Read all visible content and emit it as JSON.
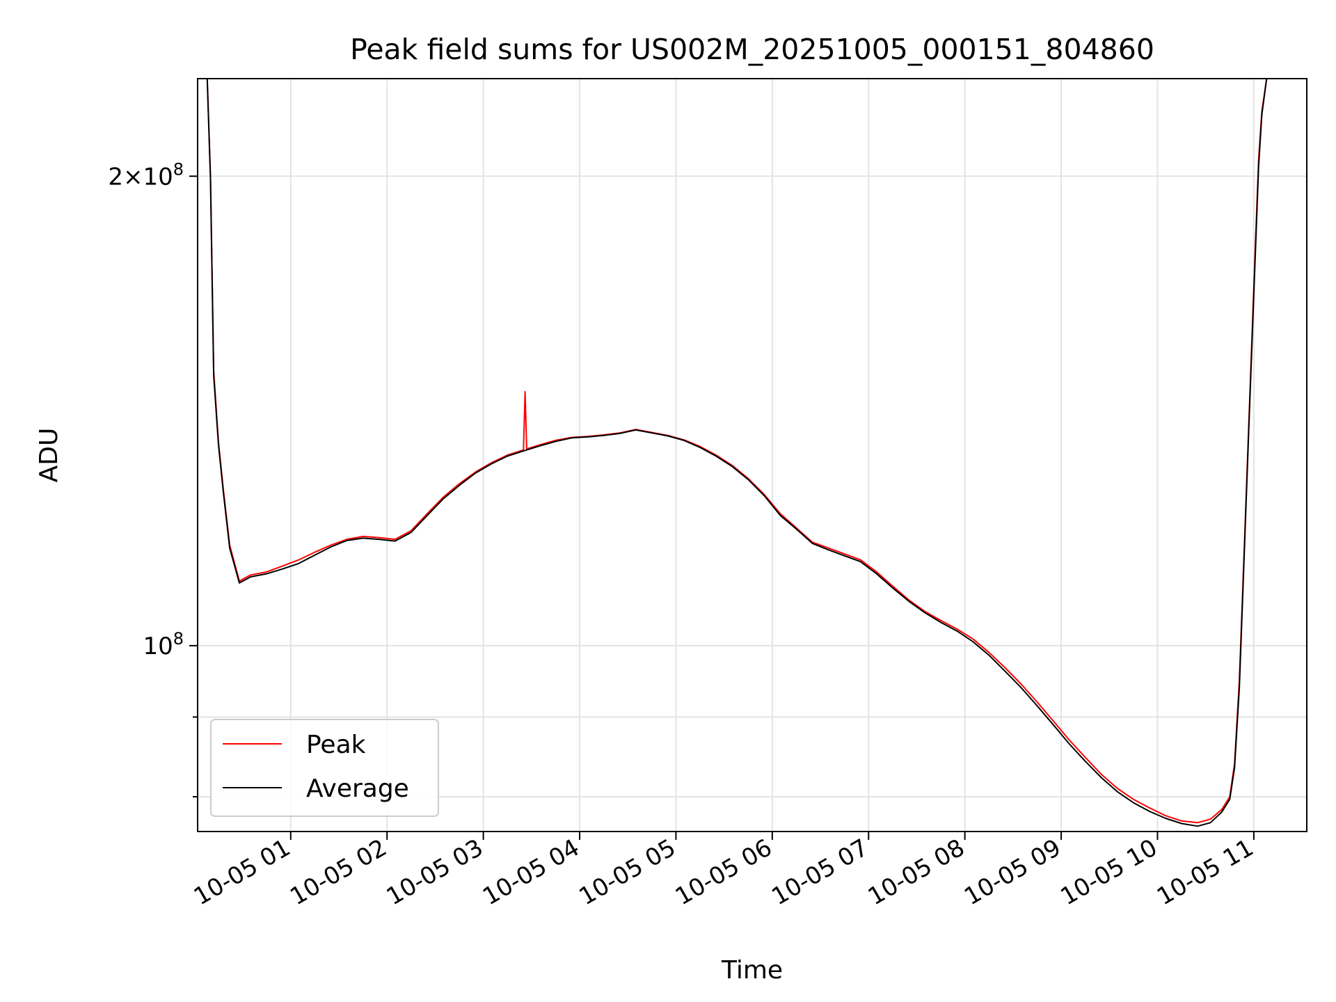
{
  "chart_data": {
    "type": "line",
    "title": "Peak field sums for US002M_20251005_000151_804860",
    "xlabel": "Time",
    "ylabel": "ADU",
    "yscale": "log",
    "grid": true,
    "legend_position": "bottom-left",
    "x_tick_labels": [
      "10-05 01",
      "10-05 02",
      "10-05 03",
      "10-05 04",
      "10-05 05",
      "10-05 06",
      "10-05 07",
      "10-05 08",
      "10-05 09",
      "10-05 10",
      "10-05 11"
    ],
    "y_tick_labels": [
      {
        "value": 200000000,
        "base": "2×10",
        "exp": "8"
      },
      {
        "value": 100000000,
        "base": "10",
        "exp": "8"
      }
    ],
    "y_minor_ticks": [
      80000000,
      90000000
    ],
    "xlim": [
      "2025-10-05 00:02",
      "2025-10-05 11:33"
    ],
    "ylim": [
      76000000,
      231000000
    ],
    "series": [
      {
        "name": "Peak",
        "color": "#ff0000",
        "points": [
          [
            "2025-10-05 00:08",
            231000000
          ],
          [
            "2025-10-05 00:10",
            200000000
          ],
          [
            "2025-10-05 00:12",
            150000000
          ],
          [
            "2025-10-05 00:15",
            135000000
          ],
          [
            "2025-10-05 00:18",
            126000000
          ],
          [
            "2025-10-05 00:22",
            116000000
          ],
          [
            "2025-10-05 00:28",
            110000000
          ],
          [
            "2025-10-05 00:35",
            111000000
          ],
          [
            "2025-10-05 00:45",
            111500000
          ],
          [
            "2025-10-05 00:55",
            112500000
          ],
          [
            "2025-10-05 01:05",
            113500000
          ],
          [
            "2025-10-05 01:15",
            114800000
          ],
          [
            "2025-10-05 01:25",
            116000000
          ],
          [
            "2025-10-05 01:35",
            117000000
          ],
          [
            "2025-10-05 01:45",
            117500000
          ],
          [
            "2025-10-05 01:55",
            117300000
          ],
          [
            "2025-10-05 02:05",
            117000000
          ],
          [
            "2025-10-05 02:15",
            118500000
          ],
          [
            "2025-10-05 02:25",
            121500000
          ],
          [
            "2025-10-05 02:35",
            124500000
          ],
          [
            "2025-10-05 02:45",
            127000000
          ],
          [
            "2025-10-05 02:55",
            129200000
          ],
          [
            "2025-10-05 03:05",
            131000000
          ],
          [
            "2025-10-05 03:15",
            132500000
          ],
          [
            "2025-10-05 03:25",
            133500000
          ],
          [
            "2025-10-05 03:26",
            145500000
          ],
          [
            "2025-10-05 03:27",
            133700000
          ],
          [
            "2025-10-05 03:35",
            134500000
          ],
          [
            "2025-10-05 03:45",
            135400000
          ],
          [
            "2025-10-05 03:55",
            136000000
          ],
          [
            "2025-10-05 04:05",
            136200000
          ],
          [
            "2025-10-05 04:15",
            136500000
          ],
          [
            "2025-10-05 04:25",
            136900000
          ],
          [
            "2025-10-05 04:35",
            137600000
          ],
          [
            "2025-10-05 04:45",
            137000000
          ],
          [
            "2025-10-05 04:55",
            136400000
          ],
          [
            "2025-10-05 05:05",
            135500000
          ],
          [
            "2025-10-05 05:15",
            134200000
          ],
          [
            "2025-10-05 05:25",
            132500000
          ],
          [
            "2025-10-05 05:35",
            130500000
          ],
          [
            "2025-10-05 05:45",
            128000000
          ],
          [
            "2025-10-05 05:55",
            125000000
          ],
          [
            "2025-10-05 06:05",
            121500000
          ],
          [
            "2025-10-05 06:15",
            119000000
          ],
          [
            "2025-10-05 06:25",
            116500000
          ],
          [
            "2025-10-05 06:35",
            115500000
          ],
          [
            "2025-10-05 06:45",
            114500000
          ],
          [
            "2025-10-05 06:55",
            113500000
          ],
          [
            "2025-10-05 07:05",
            111500000
          ],
          [
            "2025-10-05 07:15",
            109200000
          ],
          [
            "2025-10-05 07:25",
            107000000
          ],
          [
            "2025-10-05 07:35",
            105200000
          ],
          [
            "2025-10-05 07:45",
            103800000
          ],
          [
            "2025-10-05 07:55",
            102500000
          ],
          [
            "2025-10-05 08:05",
            101000000
          ],
          [
            "2025-10-05 08:15",
            99000000
          ],
          [
            "2025-10-05 08:25",
            96800000
          ],
          [
            "2025-10-05 08:35",
            94500000
          ],
          [
            "2025-10-05 08:45",
            92000000
          ],
          [
            "2025-10-05 08:55",
            89500000
          ],
          [
            "2025-10-05 09:05",
            87000000
          ],
          [
            "2025-10-05 09:15",
            84800000
          ],
          [
            "2025-10-05 09:25",
            82700000
          ],
          [
            "2025-10-05 09:35",
            81000000
          ],
          [
            "2025-10-05 09:45",
            79700000
          ],
          [
            "2025-10-05 09:55",
            78700000
          ],
          [
            "2025-10-05 10:05",
            77800000
          ],
          [
            "2025-10-05 10:15",
            77200000
          ],
          [
            "2025-10-05 10:25",
            77000000
          ],
          [
            "2025-10-05 10:33",
            77400000
          ],
          [
            "2025-10-05 10:40",
            78500000
          ],
          [
            "2025-10-05 10:45",
            80000000
          ],
          [
            "2025-10-05 10:48",
            84000000
          ],
          [
            "2025-10-05 10:51",
            95000000
          ],
          [
            "2025-10-05 10:54",
            115000000
          ],
          [
            "2025-10-05 10:57",
            140000000
          ],
          [
            "2025-10-05 11:00",
            170000000
          ],
          [
            "2025-10-05 11:03",
            205000000
          ],
          [
            "2025-10-05 11:05",
            220000000
          ],
          [
            "2025-10-05 11:08",
            231000000
          ]
        ]
      },
      {
        "name": "Average",
        "color": "#000000",
        "points": [
          [
            "2025-10-05 00:08",
            231000000
          ],
          [
            "2025-10-05 00:10",
            199000000
          ],
          [
            "2025-10-05 00:12",
            149000000
          ],
          [
            "2025-10-05 00:15",
            134500000
          ],
          [
            "2025-10-05 00:18",
            125500000
          ],
          [
            "2025-10-05 00:22",
            115500000
          ],
          [
            "2025-10-05 00:28",
            109700000
          ],
          [
            "2025-10-05 00:35",
            110700000
          ],
          [
            "2025-10-05 00:45",
            111200000
          ],
          [
            "2025-10-05 00:55",
            112000000
          ],
          [
            "2025-10-05 01:05",
            112900000
          ],
          [
            "2025-10-05 01:15",
            114300000
          ],
          [
            "2025-10-05 01:25",
            115700000
          ],
          [
            "2025-10-05 01:35",
            116800000
          ],
          [
            "2025-10-05 01:45",
            117200000
          ],
          [
            "2025-10-05 01:55",
            117000000
          ],
          [
            "2025-10-05 02:05",
            116700000
          ],
          [
            "2025-10-05 02:15",
            118200000
          ],
          [
            "2025-10-05 02:25",
            121200000
          ],
          [
            "2025-10-05 02:35",
            124200000
          ],
          [
            "2025-10-05 02:45",
            126700000
          ],
          [
            "2025-10-05 02:55",
            129000000
          ],
          [
            "2025-10-05 03:05",
            130800000
          ],
          [
            "2025-10-05 03:15",
            132300000
          ],
          [
            "2025-10-05 03:25",
            133300000
          ],
          [
            "2025-10-05 03:35",
            134300000
          ],
          [
            "2025-10-05 03:45",
            135200000
          ],
          [
            "2025-10-05 03:55",
            135900000
          ],
          [
            "2025-10-05 04:05",
            136100000
          ],
          [
            "2025-10-05 04:15",
            136400000
          ],
          [
            "2025-10-05 04:25",
            136800000
          ],
          [
            "2025-10-05 04:35",
            137500000
          ],
          [
            "2025-10-05 04:45",
            136900000
          ],
          [
            "2025-10-05 04:55",
            136300000
          ],
          [
            "2025-10-05 05:05",
            135400000
          ],
          [
            "2025-10-05 05:15",
            134000000
          ],
          [
            "2025-10-05 05:25",
            132300000
          ],
          [
            "2025-10-05 05:35",
            130300000
          ],
          [
            "2025-10-05 05:45",
            127800000
          ],
          [
            "2025-10-05 05:55",
            124800000
          ],
          [
            "2025-10-05 06:05",
            121200000
          ],
          [
            "2025-10-05 06:15",
            118800000
          ],
          [
            "2025-10-05 06:25",
            116300000
          ],
          [
            "2025-10-05 06:35",
            115200000
          ],
          [
            "2025-10-05 06:45",
            114200000
          ],
          [
            "2025-10-05 06:55",
            113200000
          ],
          [
            "2025-10-05 07:05",
            111200000
          ],
          [
            "2025-10-05 07:15",
            108900000
          ],
          [
            "2025-10-05 07:25",
            106800000
          ],
          [
            "2025-10-05 07:35",
            105000000
          ],
          [
            "2025-10-05 07:45",
            103500000
          ],
          [
            "2025-10-05 07:55",
            102200000
          ],
          [
            "2025-10-05 08:05",
            100600000
          ],
          [
            "2025-10-05 08:15",
            98600000
          ],
          [
            "2025-10-05 08:25",
            96300000
          ],
          [
            "2025-10-05 08:35",
            94000000
          ],
          [
            "2025-10-05 08:45",
            91500000
          ],
          [
            "2025-10-05 08:55",
            89000000
          ],
          [
            "2025-10-05 09:05",
            86500000
          ],
          [
            "2025-10-05 09:15",
            84300000
          ],
          [
            "2025-10-05 09:25",
            82300000
          ],
          [
            "2025-10-05 09:35",
            80600000
          ],
          [
            "2025-10-05 09:45",
            79300000
          ],
          [
            "2025-10-05 09:55",
            78300000
          ],
          [
            "2025-10-05 10:05",
            77500000
          ],
          [
            "2025-10-05 10:15",
            76900000
          ],
          [
            "2025-10-05 10:25",
            76600000
          ],
          [
            "2025-10-05 10:33",
            77000000
          ],
          [
            "2025-10-05 10:40",
            78200000
          ],
          [
            "2025-10-05 10:45",
            79700000
          ],
          [
            "2025-10-05 10:48",
            83500000
          ],
          [
            "2025-10-05 10:51",
            94000000
          ],
          [
            "2025-10-05 10:54",
            114000000
          ],
          [
            "2025-10-05 10:57",
            139000000
          ],
          [
            "2025-10-05 11:00",
            168000000
          ],
          [
            "2025-10-05 11:03",
            203000000
          ],
          [
            "2025-10-05 11:05",
            219000000
          ],
          [
            "2025-10-05 11:08",
            231000000
          ]
        ]
      }
    ]
  }
}
